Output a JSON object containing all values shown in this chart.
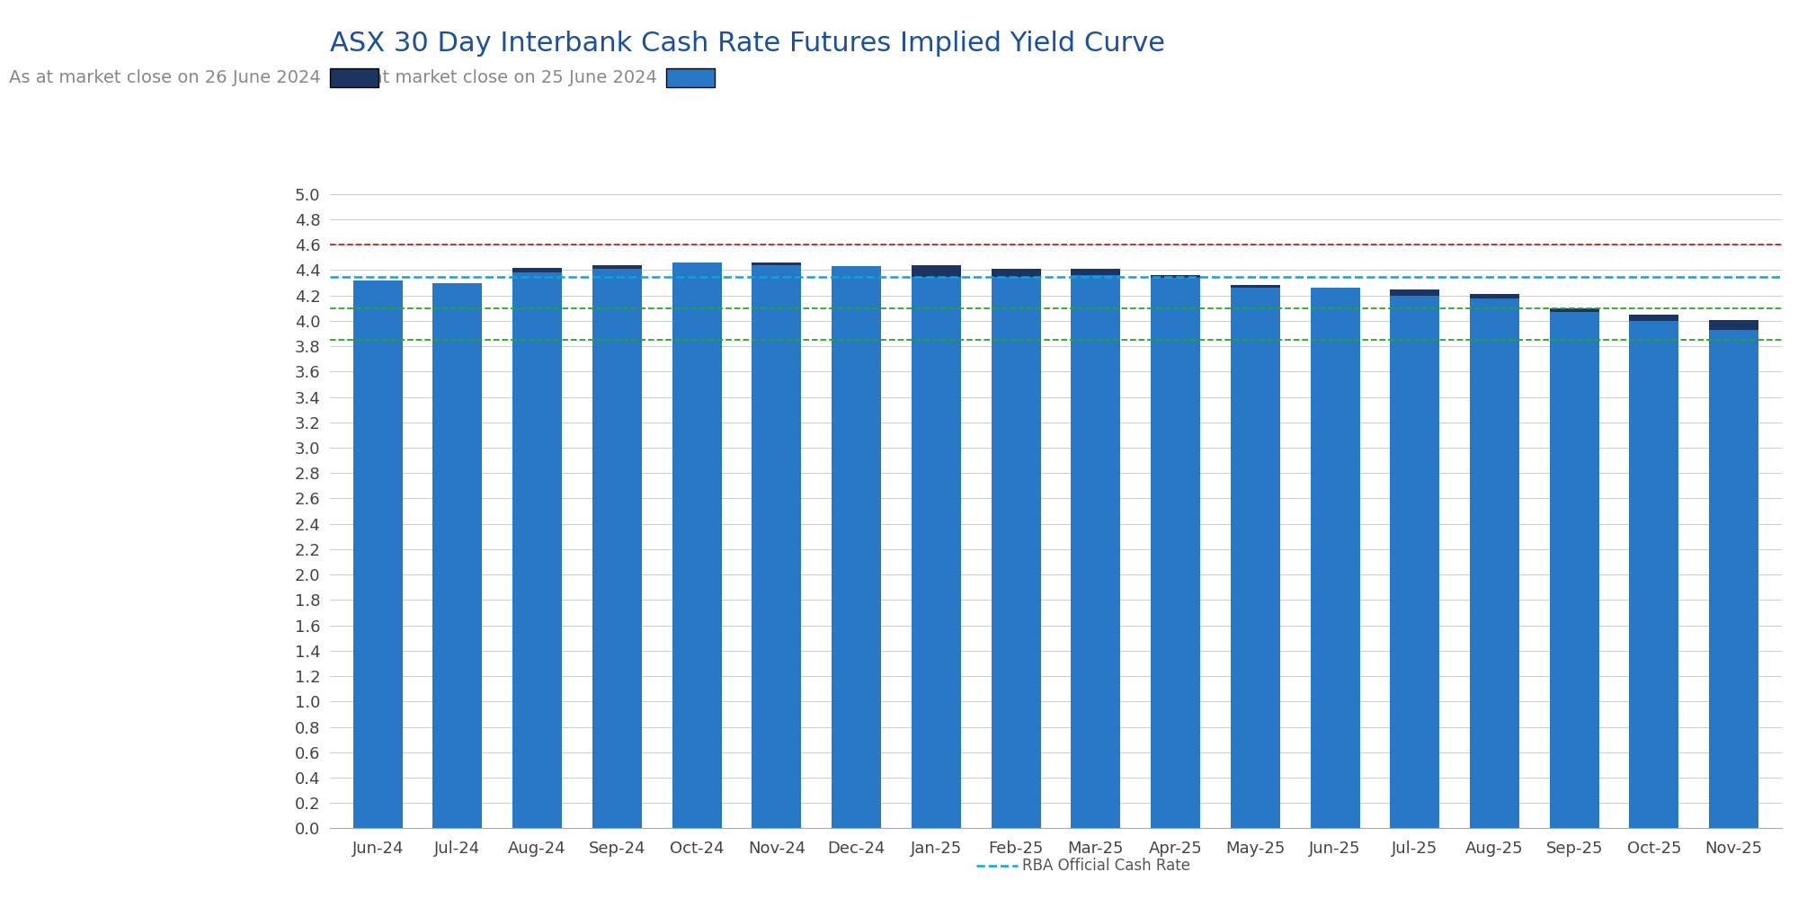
{
  "title": "ASX 30 Day Interbank Cash Rate Futures Implied Yield Curve",
  "legend_label_dark": "As at market close on 26 June 2024",
  "legend_label_light": "As at market close on 25 June 2024",
  "xlabel_bottom": "RBA Official Cash Rate",
  "categories": [
    "Jun-24",
    "Jul-24",
    "Aug-24",
    "Sep-24",
    "Oct-24",
    "Nov-24",
    "Dec-24",
    "Jan-25",
    "Feb-25",
    "Mar-25",
    "Apr-25",
    "May-25",
    "Jun-25",
    "Jul-25",
    "Aug-25",
    "Sep-25",
    "Oct-25",
    "Nov-25"
  ],
  "values_light": [
    4.32,
    4.3,
    4.38,
    4.41,
    4.46,
    4.44,
    4.43,
    4.35,
    4.35,
    4.36,
    4.34,
    4.26,
    4.26,
    4.2,
    4.18,
    4.07,
    4.0,
    3.93
  ],
  "values_dark_extra": [
    0.0,
    0.0,
    0.04,
    0.03,
    0.0,
    0.02,
    0.0,
    0.09,
    0.06,
    0.05,
    0.02,
    0.02,
    0.0,
    0.05,
    0.03,
    0.03,
    0.05,
    0.08
  ],
  "color_light": "#2878C8",
  "color_dark": "#1C3461",
  "background_color": "#FFFFFF",
  "ylim": [
    0.0,
    5.0
  ],
  "yticks": [
    0.0,
    0.2,
    0.4,
    0.6,
    0.8,
    1.0,
    1.2,
    1.4,
    1.6,
    1.8,
    2.0,
    2.2,
    2.4,
    2.6,
    2.8,
    3.0,
    3.2,
    3.4,
    3.6,
    3.8,
    4.0,
    4.2,
    4.4,
    4.6,
    4.8,
    5.0
  ],
  "hline_red": {
    "y": 4.6,
    "color": "#CC2222",
    "linestyle": "--",
    "linewidth": 1.3
  },
  "hline_cyan": {
    "y": 4.35,
    "color": "#00AADD",
    "linestyle": "--",
    "linewidth": 1.8
  },
  "hline_green1": {
    "y": 4.1,
    "color": "#22AA22",
    "linestyle": "--",
    "linewidth": 1.3
  },
  "hline_green2": {
    "y": 3.85,
    "color": "#22AA22",
    "linestyle": "--",
    "linewidth": 1.3
  },
  "title_color": "#1C4FA0",
  "title_fontsize": 22,
  "subtitle_fontsize": 14,
  "subtitle_color": "#888888",
  "tick_fontsize": 13,
  "bar_width": 0.62
}
